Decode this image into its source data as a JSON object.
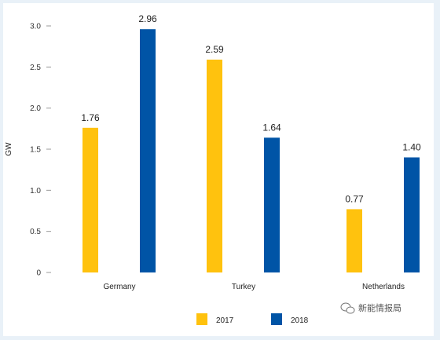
{
  "chart_data": {
    "type": "bar",
    "categories": [
      "Germany",
      "Turkey",
      "Netherlands"
    ],
    "series": [
      {
        "name": "2017",
        "values": [
          1.76,
          2.59,
          0.77
        ],
        "color": "#ffc20e"
      },
      {
        "name": "2018",
        "values": [
          2.96,
          1.64,
          1.4
        ],
        "color": "#0054a6"
      }
    ],
    "ylabel": "GW",
    "ylim": [
      0,
      3.0
    ],
    "yticks": [
      "0",
      "0.5",
      "1.0",
      "1.5",
      "2.0",
      "2.5",
      "3.0"
    ],
    "ytick_values": [
      0,
      0.5,
      1.0,
      1.5,
      2.0,
      2.5,
      3.0
    ],
    "data_labels": [
      [
        "1.76",
        "2.59",
        "0.77"
      ],
      [
        "2.96",
        "1.64",
        "1.40"
      ]
    ],
    "legend_position": "bottom",
    "grid": false
  },
  "watermark": {
    "text": "新能情报局",
    "icon": "wechat-icon"
  }
}
